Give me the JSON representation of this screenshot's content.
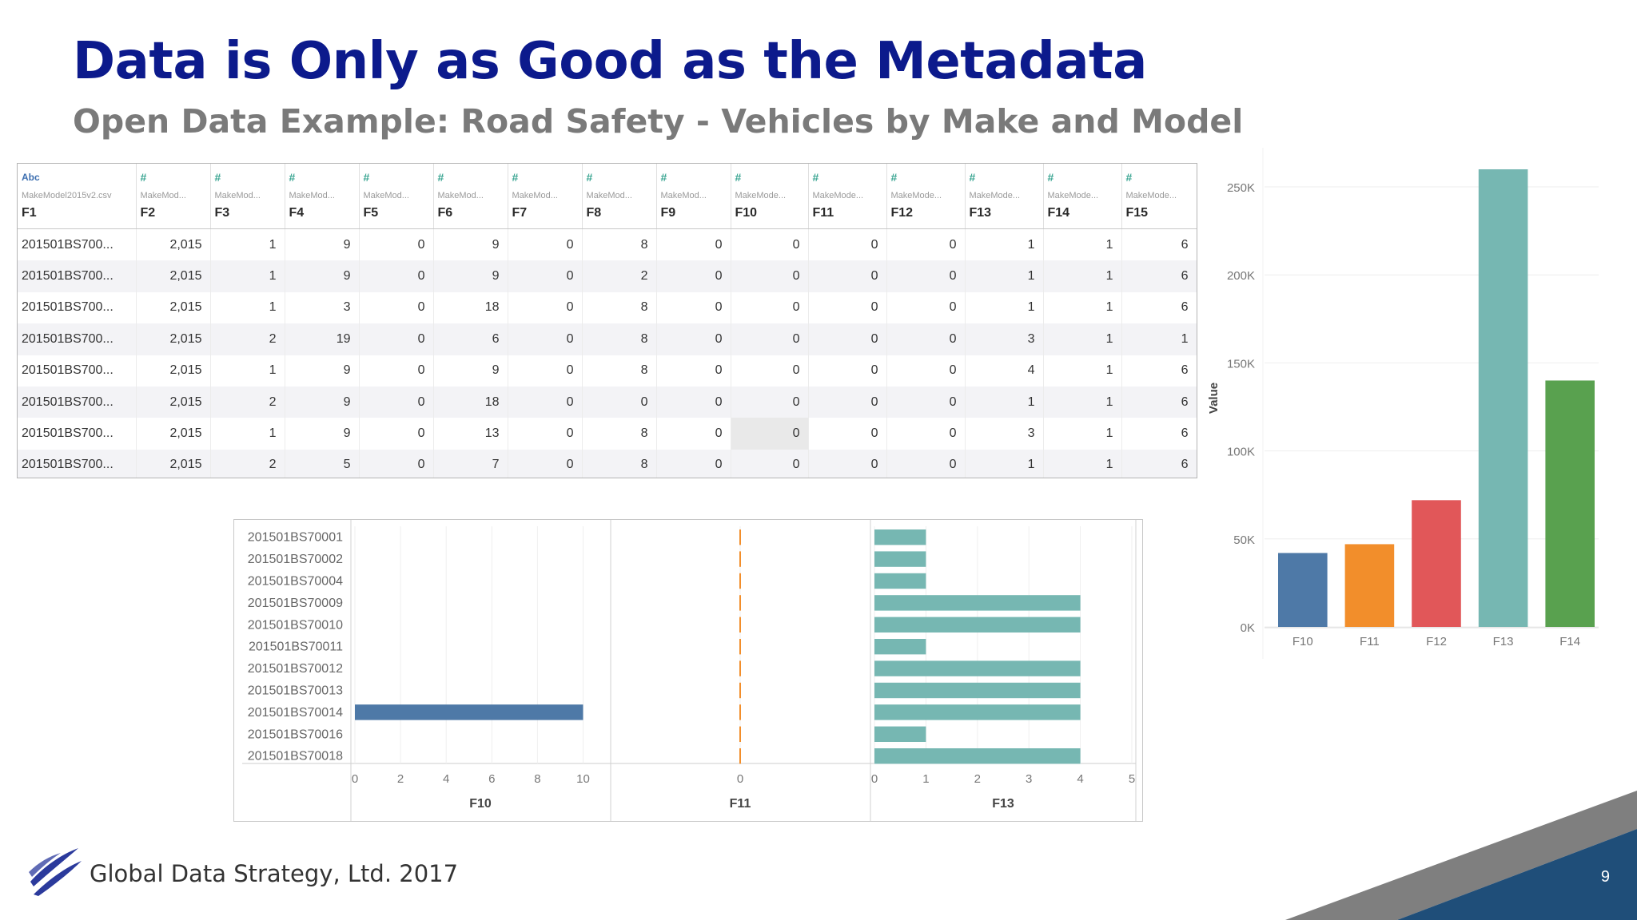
{
  "slide": {
    "title": "Data is Only as Good as the Metadata",
    "subtitle": "Open Data Example:  Road Safety - Vehicles by Make and Model",
    "footer": "Global Data Strategy, Ltd. 2017",
    "slide_number": "9",
    "colors": {
      "title": "#0c1a8c",
      "subtitle": "#7a7a7a",
      "corner_dark": "#1f4e79",
      "corner_gray": "#7f7f7f"
    }
  },
  "table": {
    "columns": [
      {
        "type_icon": "Abc",
        "source": "MakeModel2015v2.csv",
        "name": "F1"
      },
      {
        "type_icon": "#",
        "source": "MakeMod...",
        "name": "F2"
      },
      {
        "type_icon": "#",
        "source": "MakeMod...",
        "name": "F3"
      },
      {
        "type_icon": "#",
        "source": "MakeMod...",
        "name": "F4"
      },
      {
        "type_icon": "#",
        "source": "MakeMod...",
        "name": "F5"
      },
      {
        "type_icon": "#",
        "source": "MakeMod...",
        "name": "F6"
      },
      {
        "type_icon": "#",
        "source": "MakeMod...",
        "name": "F7"
      },
      {
        "type_icon": "#",
        "source": "MakeMod...",
        "name": "F8"
      },
      {
        "type_icon": "#",
        "source": "MakeMod...",
        "name": "F9"
      },
      {
        "type_icon": "#",
        "source": "MakeMode...",
        "name": "F10"
      },
      {
        "type_icon": "#",
        "source": "MakeMode...",
        "name": "F11"
      },
      {
        "type_icon": "#",
        "source": "MakeMode...",
        "name": "F12"
      },
      {
        "type_icon": "#",
        "source": "MakeMode...",
        "name": "F13"
      },
      {
        "type_icon": "#",
        "source": "MakeMode...",
        "name": "F14"
      },
      {
        "type_icon": "#",
        "source": "MakeMode...",
        "name": "F15"
      }
    ],
    "rows": [
      [
        "201501BS700...",
        "2,015",
        "1",
        "9",
        "0",
        "9",
        "0",
        "8",
        "0",
        "0",
        "0",
        "0",
        "1",
        "1",
        "6"
      ],
      [
        "201501BS700...",
        "2,015",
        "1",
        "9",
        "0",
        "9",
        "0",
        "2",
        "0",
        "0",
        "0",
        "0",
        "1",
        "1",
        "6"
      ],
      [
        "201501BS700...",
        "2,015",
        "1",
        "3",
        "0",
        "18",
        "0",
        "8",
        "0",
        "0",
        "0",
        "0",
        "1",
        "1",
        "6"
      ],
      [
        "201501BS700...",
        "2,015",
        "2",
        "19",
        "0",
        "6",
        "0",
        "8",
        "0",
        "0",
        "0",
        "0",
        "3",
        "1",
        "1"
      ],
      [
        "201501BS700...",
        "2,015",
        "1",
        "9",
        "0",
        "9",
        "0",
        "8",
        "0",
        "0",
        "0",
        "0",
        "4",
        "1",
        "6"
      ],
      [
        "201501BS700...",
        "2,015",
        "2",
        "9",
        "0",
        "18",
        "0",
        "0",
        "0",
        "0",
        "0",
        "0",
        "1",
        "1",
        "6"
      ],
      [
        "201501BS700...",
        "2,015",
        "1",
        "9",
        "0",
        "13",
        "0",
        "8",
        "0",
        "0",
        "0",
        "0",
        "3",
        "1",
        "6"
      ],
      [
        "201501BS700...",
        "2,015",
        "2",
        "5",
        "0",
        "7",
        "0",
        "8",
        "0",
        "0",
        "0",
        "0",
        "1",
        "1",
        "6"
      ]
    ],
    "selected_cell": [
      6,
      9
    ]
  },
  "chart_data": [
    {
      "type": "bar",
      "orientation": "horizontal",
      "categories": [
        "201501BS70001",
        "201501BS70002",
        "201501BS70004",
        "201501BS70009",
        "201501BS70010",
        "201501BS70011",
        "201501BS70012",
        "201501BS70013",
        "201501BS70014",
        "201501BS70016",
        "201501BS70018"
      ],
      "panels": [
        {
          "name": "F10",
          "values": [
            0,
            0,
            0,
            0,
            0,
            0,
            0,
            0,
            10,
            0,
            0
          ],
          "xlim": [
            0,
            11
          ],
          "ticks": [
            0,
            2,
            4,
            6,
            8,
            10
          ],
          "color": "#4e79a7"
        },
        {
          "name": "F11",
          "values": [
            0,
            0,
            0,
            0,
            0,
            0,
            0,
            0,
            0,
            0,
            0
          ],
          "xlim": [
            -1,
            1
          ],
          "ticks": [
            0
          ],
          "color": "#f28e2b"
        },
        {
          "name": "F13",
          "values": [
            1,
            1,
            1,
            4,
            4,
            1,
            4,
            4,
            4,
            1,
            4
          ],
          "xlim": [
            0,
            5
          ],
          "ticks": [
            0,
            1,
            2,
            3,
            4,
            5
          ],
          "color": "#76b7b2"
        }
      ],
      "grid": true
    },
    {
      "type": "bar",
      "categories": [
        "F10",
        "F11",
        "F12",
        "F13",
        "F14"
      ],
      "values": [
        42000,
        47000,
        72000,
        260000,
        140000
      ],
      "colors": [
        "#4e79a7",
        "#f28e2b",
        "#e15759",
        "#76b7b2",
        "#59a14f"
      ],
      "ylabel": "Value",
      "ylim": [
        0,
        260000
      ],
      "yticks": [
        0,
        50000,
        100000,
        150000,
        200000,
        250000
      ],
      "ytick_labels": [
        "0K",
        "50K",
        "100K",
        "150K",
        "200K",
        "250K"
      ],
      "grid": true
    }
  ]
}
